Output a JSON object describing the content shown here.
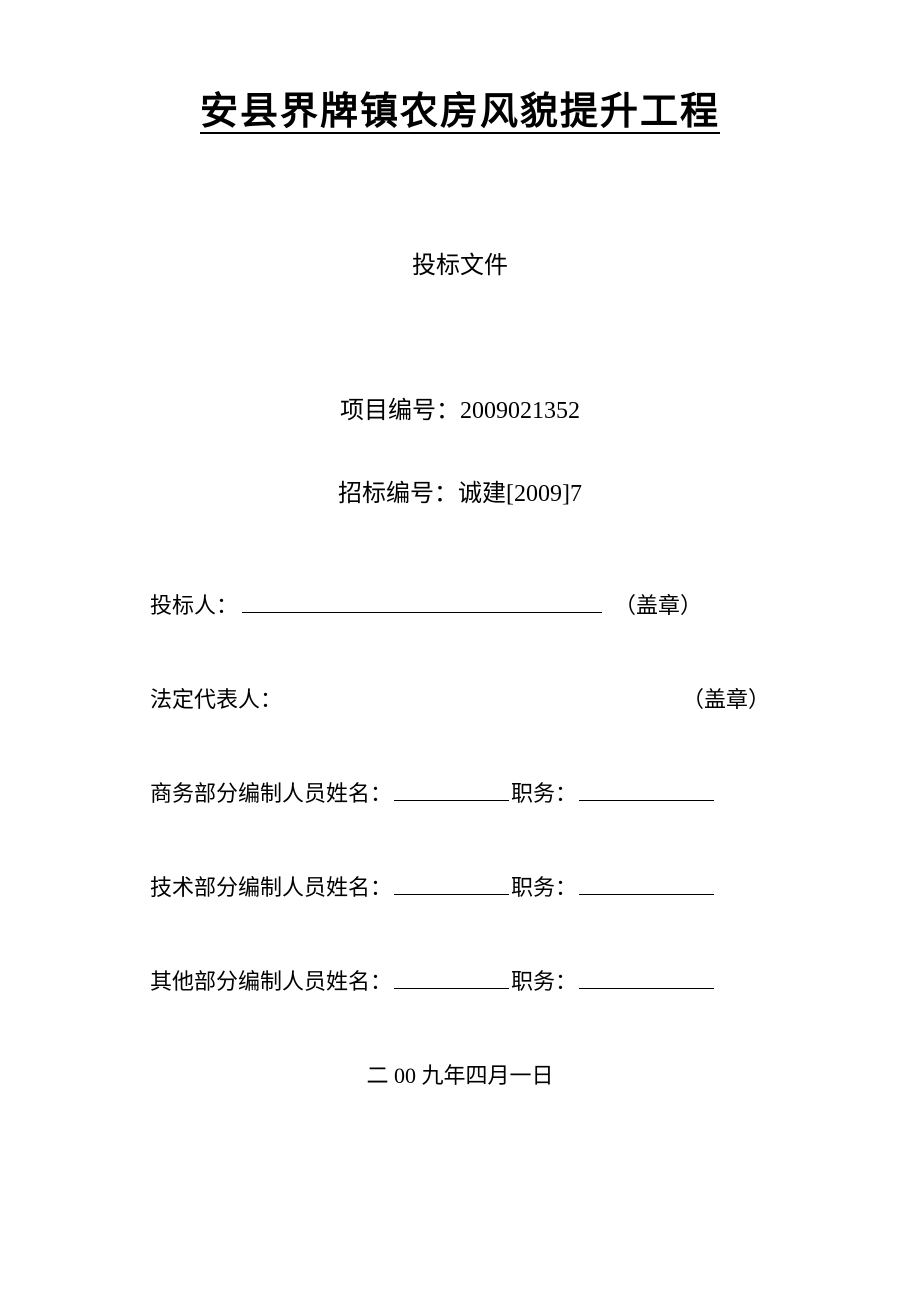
{
  "document": {
    "title": "安县界牌镇农房风貌提升工程",
    "subtitle": "投标文件",
    "project_number_label": "项目编号：",
    "project_number": "2009021352",
    "bid_number_label": "招标编号：",
    "bid_number": "诚建[2009]7",
    "bidder_label": "投标人：",
    "seal_note": "（盖章）",
    "legal_rep_label": "法定代表人：",
    "business_editor_label": "商务部分编制人员姓名：",
    "tech_editor_label": "技术部分编制人员姓名：",
    "other_editor_label": "其他部分编制人员姓名：",
    "position_label": "职务：",
    "date": "二 00 九年四月一日"
  },
  "style": {
    "title_fontsize": 38,
    "subtitle_fontsize": 24,
    "body_fontsize": 22,
    "text_color": "#000000",
    "background_color": "#ffffff"
  }
}
